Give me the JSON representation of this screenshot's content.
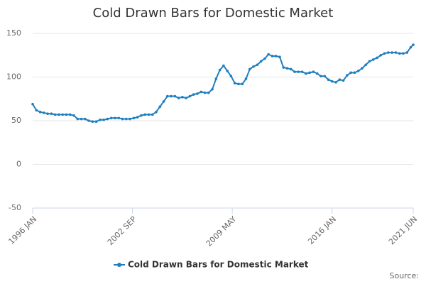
{
  "chart_data": {
    "type": "line",
    "title": "Cold Drawn Bars for Domestic Market",
    "source": "Source:",
    "x": [
      "1996-01",
      "1996-04",
      "1996-07",
      "1996-10",
      "1997-01",
      "1997-04",
      "1997-07",
      "1997-10",
      "1998-01",
      "1998-04",
      "1998-07",
      "1998-10",
      "1999-01",
      "1999-04",
      "1999-07",
      "1999-10",
      "2000-01",
      "2000-04",
      "2000-07",
      "2000-10",
      "2001-01",
      "2001-04",
      "2001-07",
      "2001-10",
      "2002-01",
      "2002-04",
      "2002-07",
      "2002-10",
      "2003-01",
      "2003-04",
      "2003-07",
      "2003-10",
      "2004-01",
      "2004-04",
      "2004-07",
      "2004-10",
      "2005-01",
      "2005-04",
      "2005-07",
      "2005-10",
      "2006-01",
      "2006-04",
      "2006-07",
      "2006-10",
      "2007-01",
      "2007-04",
      "2007-07",
      "2007-10",
      "2008-01",
      "2008-04",
      "2008-07",
      "2008-10",
      "2009-01",
      "2009-04",
      "2009-07",
      "2009-10",
      "2010-01",
      "2010-04",
      "2010-07",
      "2010-10",
      "2011-01",
      "2011-04",
      "2011-07",
      "2011-10",
      "2012-01",
      "2012-04",
      "2012-07",
      "2012-10",
      "2013-01",
      "2013-04",
      "2013-07",
      "2013-10",
      "2014-01",
      "2014-04",
      "2014-07",
      "2014-10",
      "2015-01",
      "2015-04",
      "2015-07",
      "2015-10",
      "2016-01",
      "2016-04",
      "2016-07",
      "2016-10",
      "2017-01",
      "2017-04",
      "2017-07",
      "2017-10",
      "2018-01",
      "2018-04",
      "2018-07",
      "2018-10",
      "2019-01",
      "2019-04",
      "2019-07",
      "2019-10",
      "2020-01",
      "2020-04",
      "2020-07",
      "2020-10",
      "2021-01",
      "2021-04",
      "2021-06"
    ],
    "series": [
      {
        "name": "Cold Drawn Bars for Domestic Market",
        "color": "#1f7fbf",
        "values": [
          69,
          62,
          60,
          59,
          58,
          58,
          57,
          57,
          57,
          57,
          57,
          56,
          52,
          52,
          52,
          50,
          49,
          49,
          51,
          51,
          52,
          53,
          53,
          53,
          52,
          52,
          52,
          53,
          54,
          56,
          57,
          57,
          57,
          60,
          66,
          72,
          78,
          78,
          78,
          76,
          77,
          76,
          78,
          80,
          81,
          83,
          82,
          82,
          86,
          98,
          108,
          113,
          107,
          101,
          93,
          92,
          92,
          98,
          109,
          112,
          114,
          118,
          121,
          126,
          124,
          124,
          123,
          111,
          110,
          109,
          106,
          106,
          106,
          104,
          105,
          106,
          104,
          101,
          101,
          97,
          95,
          94,
          97,
          96,
          102,
          105,
          105,
          107,
          110,
          114,
          118,
          120,
          122,
          125,
          127,
          128,
          128,
          128,
          127,
          127,
          128,
          134,
          137
        ]
      }
    ],
    "xticks": [
      {
        "value": "1996-01",
        "label": "1996 JAN"
      },
      {
        "value": "2002-09",
        "label": "2002 SEP"
      },
      {
        "value": "2009-05",
        "label": "2009 MAY"
      },
      {
        "value": "2016-01",
        "label": "2016 JAN"
      },
      {
        "value": "2021-06",
        "label": "2021 JUN"
      }
    ],
    "ylim": [
      -50,
      150
    ],
    "yticks": [
      -50,
      0,
      50,
      100,
      150
    ],
    "grid": true,
    "legend": "bottom"
  }
}
